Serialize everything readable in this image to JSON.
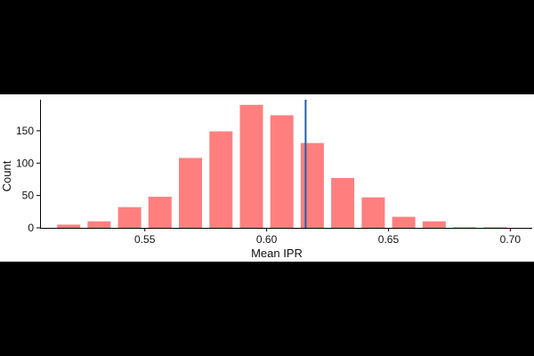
{
  "chart_data": {
    "type": "bar",
    "title": "",
    "xlabel": "Mean IPR",
    "ylabel": "Count",
    "xlim": [
      0.507,
      0.709
    ],
    "ylim": [
      0,
      198
    ],
    "x_ticks": [
      0.55,
      0.6,
      0.65,
      0.7
    ],
    "x_tick_labels": [
      "0.55",
      "0.60",
      "0.65",
      "0.70"
    ],
    "y_ticks": [
      0,
      50,
      100,
      150
    ],
    "y_tick_labels": [
      "0",
      "50",
      "100",
      "150"
    ],
    "bin_width": 0.0125,
    "bins": [
      {
        "start": 0.5125,
        "end": 0.525,
        "count": 5
      },
      {
        "start": 0.525,
        "end": 0.5375,
        "count": 10
      },
      {
        "start": 0.5375,
        "end": 0.55,
        "count": 32
      },
      {
        "start": 0.55,
        "end": 0.5625,
        "count": 48
      },
      {
        "start": 0.5625,
        "end": 0.575,
        "count": 108
      },
      {
        "start": 0.575,
        "end": 0.5875,
        "count": 149
      },
      {
        "start": 0.5875,
        "end": 0.6,
        "count": 190
      },
      {
        "start": 0.6,
        "end": 0.6125,
        "count": 174
      },
      {
        "start": 0.6125,
        "end": 0.625,
        "count": 131
      },
      {
        "start": 0.625,
        "end": 0.6375,
        "count": 77
      },
      {
        "start": 0.6375,
        "end": 0.65,
        "count": 47
      },
      {
        "start": 0.65,
        "end": 0.6625,
        "count": 17
      },
      {
        "start": 0.6625,
        "end": 0.675,
        "count": 10
      },
      {
        "start": 0.675,
        "end": 0.6875,
        "count": 1
      },
      {
        "start": 0.6875,
        "end": 0.7,
        "count": 1
      }
    ],
    "reference_line": {
      "x": 0.616,
      "color": "#1f5fa8"
    },
    "bar_color": "#ff7f7f",
    "grid": false,
    "legend": "none"
  }
}
